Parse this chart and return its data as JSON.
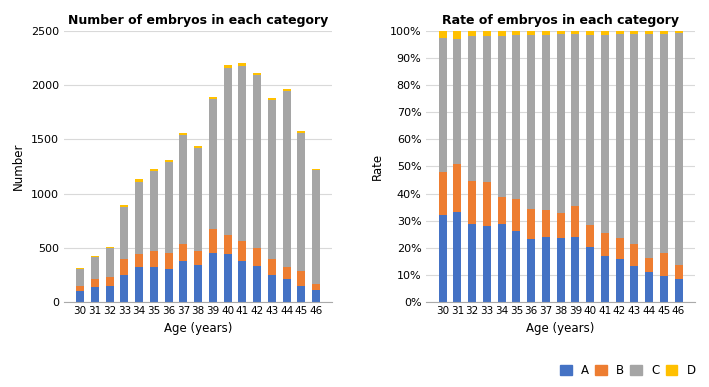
{
  "ages": [
    30,
    31,
    32,
    33,
    34,
    35,
    36,
    37,
    38,
    39,
    40,
    41,
    42,
    43,
    44,
    45,
    46
  ],
  "A": [
    100,
    140,
    145,
    250,
    325,
    320,
    305,
    375,
    340,
    455,
    445,
    375,
    335,
    250,
    215,
    150,
    105
  ],
  "B": [
    50,
    75,
    80,
    145,
    115,
    145,
    145,
    155,
    130,
    215,
    175,
    185,
    165,
    150,
    105,
    135,
    60
  ],
  "C": [
    155,
    195,
    270,
    480,
    670,
    740,
    840,
    1010,
    950,
    1200,
    1540,
    1615,
    1590,
    1460,
    1625,
    1275,
    1055
  ],
  "D": [
    8,
    12,
    10,
    18,
    22,
    18,
    18,
    22,
    18,
    22,
    30,
    30,
    25,
    18,
    22,
    18,
    8
  ],
  "colors": {
    "A": "#4472C4",
    "B": "#ED7D31",
    "C": "#A5A5A5",
    "D": "#FFC000"
  },
  "title1": "Number of embryos in each category",
  "title2": "Rate of embryos in each category",
  "xlabel": "Age (years)",
  "ylabel1": "Number",
  "ylabel2": "Rate",
  "ylim1": [
    0,
    2500
  ],
  "ylim2": [
    0,
    1.0
  ],
  "yticks1": [
    0,
    500,
    1000,
    1500,
    2000,
    2500
  ],
  "yticks2": [
    0.0,
    0.1,
    0.2,
    0.3,
    0.4,
    0.5,
    0.6,
    0.7,
    0.8,
    0.9,
    1.0
  ],
  "grid_color": "#D9D9D9",
  "bg_color": "#FFFFFF"
}
